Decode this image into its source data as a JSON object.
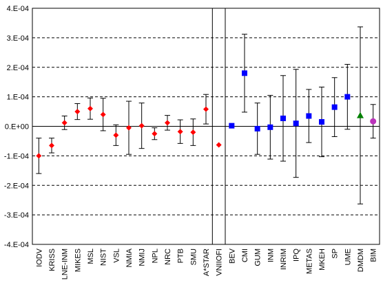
{
  "chart_data": {
    "type": "scatter",
    "title": "",
    "xlabel": "",
    "ylabel": "",
    "ylim": [
      -0.0004,
      0.0004
    ],
    "yticks": [
      0.0004,
      0.0003,
      0.0002,
      0.0001,
      0,
      -0.0001,
      -0.0002,
      -0.0003,
      -0.0004
    ],
    "ytick_labels": [
      "4.E-04",
      "3.E-04",
      "2.E-04",
      "1.E-04",
      "0.E+00",
      "-1.E-04",
      "-2.E-04",
      "-3.E-04",
      "-4.E-04"
    ],
    "grid": "horizontal-dashed",
    "legend": "none",
    "separators_after": [
      "A*STAR",
      "VNIIOFI"
    ],
    "colors": {
      "red": "#ff0000",
      "blue": "#0000ff",
      "green": "#008000",
      "purple": "#bb33bb"
    },
    "categories": [
      "IODV",
      "KRISS",
      "LNE-INM",
      "MIKES",
      "MSL",
      "NIST",
      "VSL",
      "NMIA",
      "NMIJ",
      "NPL",
      "NRC",
      "PTB",
      "SMU",
      "A*STAR",
      "VNIIOFI",
      "BEV",
      "CMI",
      "GUM",
      "INM",
      "INRIM",
      "IPQ",
      "METAS",
      "MKEH",
      "SP",
      "UME",
      "DMDM",
      "BIM"
    ],
    "points": [
      {
        "label": "IODV",
        "y": -0.0001,
        "err": 6e-05,
        "marker": "diamond",
        "color": "red"
      },
      {
        "label": "KRISS",
        "y": -6.5e-05,
        "err": 2.5e-05,
        "marker": "diamond",
        "color": "red"
      },
      {
        "label": "LNE-INM",
        "y": 1.2e-05,
        "err": 2.3e-05,
        "marker": "diamond",
        "color": "red"
      },
      {
        "label": "MIKES",
        "y": 5e-05,
        "err": 2.7e-05,
        "marker": "diamond",
        "color": "red"
      },
      {
        "label": "MSL",
        "y": 6e-05,
        "err": 3.6e-05,
        "marker": "diamond",
        "color": "red"
      },
      {
        "label": "NIST",
        "y": 4e-05,
        "err": 5.5e-05,
        "marker": "diamond",
        "color": "red"
      },
      {
        "label": "VSL",
        "y": -3e-05,
        "err": 3.5e-05,
        "marker": "diamond",
        "color": "red"
      },
      {
        "label": "NMIA",
        "y": -5e-06,
        "err": 9e-05,
        "marker": "diamond",
        "color": "red"
      },
      {
        "label": "NMIJ",
        "y": 2e-06,
        "err": 7.7e-05,
        "marker": "diamond",
        "color": "red"
      },
      {
        "label": "NPL",
        "y": -2.5e-05,
        "err": 2e-05,
        "marker": "diamond",
        "color": "red"
      },
      {
        "label": "NRC",
        "y": 1.2e-05,
        "err": 2.5e-05,
        "marker": "diamond",
        "color": "red"
      },
      {
        "label": "PTB",
        "y": -1.8e-05,
        "err": 4e-05,
        "marker": "diamond",
        "color": "red"
      },
      {
        "label": "SMU",
        "y": -2e-05,
        "err": 4.5e-05,
        "marker": "diamond",
        "color": "red"
      },
      {
        "label": "A*STAR",
        "y": 5.8e-05,
        "err": 5e-05,
        "marker": "diamond",
        "color": "red"
      },
      {
        "label": "VNIIOFI",
        "y": -6.3e-05,
        "err": null,
        "marker": "diamond",
        "color": "red"
      },
      {
        "label": "BEV",
        "y": 2e-06,
        "err": null,
        "marker": "square",
        "color": "blue"
      },
      {
        "label": "CMI",
        "y": 0.00018,
        "err": 0.000132,
        "marker": "square",
        "color": "blue"
      },
      {
        "label": "GUM",
        "y": -8e-06,
        "err": 8.7e-05,
        "marker": "square",
        "color": "blue"
      },
      {
        "label": "INM",
        "y": -3e-06,
        "err": 0.000108,
        "marker": "square",
        "color": "blue"
      },
      {
        "label": "INRIM",
        "y": 2.7e-05,
        "err": 0.000145,
        "marker": "square",
        "color": "blue"
      },
      {
        "label": "IPQ",
        "y": 1e-05,
        "err": 0.000183,
        "marker": "square",
        "color": "blue"
      },
      {
        "label": "METAS",
        "y": 3.5e-05,
        "err": 9e-05,
        "marker": "square",
        "color": "blue"
      },
      {
        "label": "MKEH",
        "y": 1.5e-05,
        "err": 0.000118,
        "marker": "square",
        "color": "blue"
      },
      {
        "label": "SP",
        "y": 6.5e-05,
        "err": 0.0001,
        "marker": "square",
        "color": "blue"
      },
      {
        "label": "UME",
        "y": 0.0001,
        "err": 0.00011,
        "marker": "square",
        "color": "blue"
      },
      {
        "label": "DMDM",
        "y": 3.7e-05,
        "err": 0.0003,
        "marker": "triangle",
        "color": "green"
      },
      {
        "label": "BIM",
        "y": 1.7e-05,
        "err": 5.7e-05,
        "marker": "circle",
        "color": "purple"
      }
    ]
  }
}
